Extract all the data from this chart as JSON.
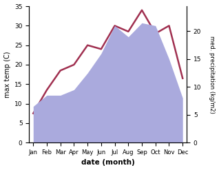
{
  "months": [
    "Jan",
    "Feb",
    "Mar",
    "Apr",
    "May",
    "Jun",
    "Jul",
    "Aug",
    "Sep",
    "Oct",
    "Nov",
    "Dec"
  ],
  "temp": [
    7.5,
    13.5,
    18.5,
    20.0,
    25.0,
    24.0,
    30.0,
    28.5,
    34.0,
    28.0,
    30.0,
    16.5
  ],
  "precip": [
    6.5,
    8.5,
    8.5,
    9.5,
    12.5,
    16.0,
    21.0,
    19.0,
    21.5,
    21.0,
    15.0,
    8.0
  ],
  "temp_color": "#a03050",
  "precip_fill_color": "#aaaadd",
  "ylabel_left": "max temp (C)",
  "ylabel_right": "med. precipitation (kg/m2)",
  "xlabel": "date (month)",
  "ylim_left": [
    0,
    35
  ],
  "ylim_right": [
    0,
    24.5
  ],
  "bg_color": "#ffffff"
}
